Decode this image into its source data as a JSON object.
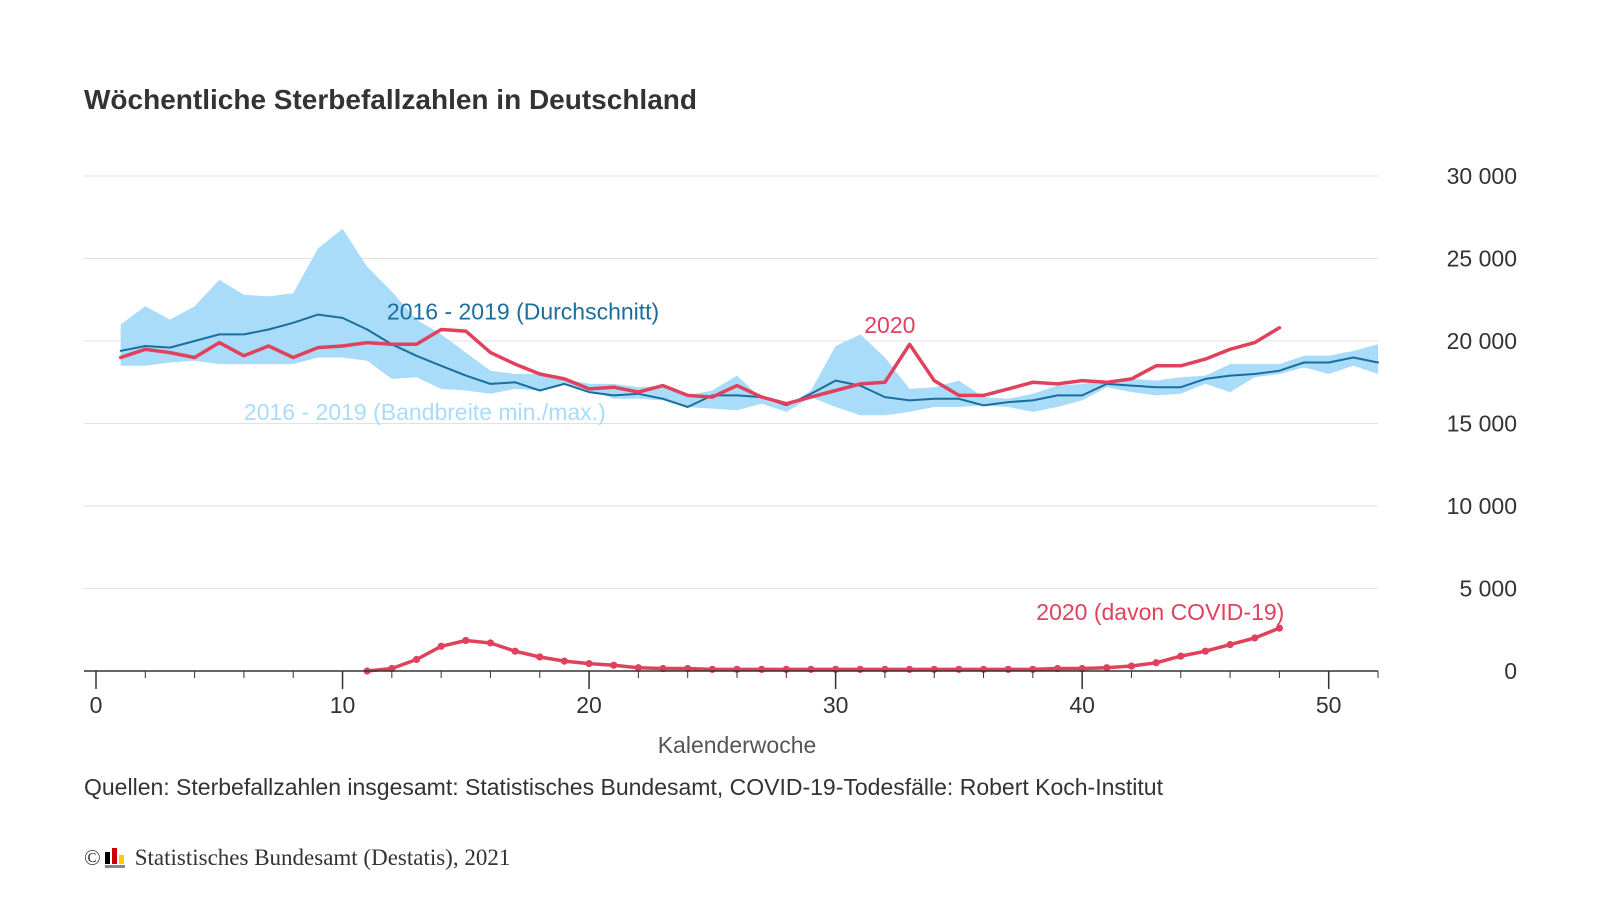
{
  "chart_data": {
    "type": "line",
    "title": "Wöchentliche Sterbefallzahlen in Deutschland",
    "xlabel": "Kalenderwoche",
    "ylabel": "",
    "xlim": [
      0,
      52
    ],
    "ylim": [
      0,
      30000
    ],
    "x_ticks": [
      0,
      10,
      20,
      30,
      40,
      50
    ],
    "x_tick_labels": [
      "0",
      "10",
      "20",
      "30",
      "40",
      "50"
    ],
    "y_ticks": [
      0,
      5000,
      10000,
      15000,
      20000,
      25000,
      30000
    ],
    "y_tick_labels": [
      "0",
      "5 000",
      "10 000",
      "15 000",
      "20 000",
      "25 000",
      "30 000"
    ],
    "y_axis_position": "right",
    "grid": true,
    "band": {
      "name": "2016 - 2019 (Bandbreite min./max.)",
      "color": "#a8dcf8",
      "x": [
        1,
        2,
        3,
        4,
        5,
        6,
        7,
        8,
        9,
        10,
        11,
        12,
        13,
        14,
        15,
        16,
        17,
        18,
        19,
        20,
        21,
        22,
        23,
        24,
        25,
        26,
        27,
        28,
        29,
        30,
        31,
        32,
        33,
        34,
        35,
        36,
        37,
        38,
        39,
        40,
        41,
        42,
        43,
        44,
        45,
        46,
        47,
        48,
        49,
        50,
        51,
        52
      ],
      "min": [
        18500,
        18500,
        18700,
        18800,
        18600,
        18600,
        18600,
        18600,
        19000,
        19000,
        18800,
        17700,
        17800,
        17100,
        17000,
        16800,
        17100,
        17000,
        17400,
        17000,
        16500,
        16500,
        16400,
        16000,
        15900,
        15800,
        16200,
        15700,
        16600,
        16000,
        15500,
        15500,
        15700,
        16000,
        16000,
        16100,
        16000,
        15700,
        16000,
        16400,
        17200,
        16900,
        16700,
        16800,
        17400,
        16900,
        17800,
        18000,
        18400,
        18000,
        18500,
        18000
      ],
      "max": [
        21000,
        22100,
        21300,
        22100,
        23700,
        22800,
        22700,
        22900,
        25600,
        26800,
        24500,
        23000,
        21300,
        20400,
        19300,
        18200,
        18000,
        18000,
        17700,
        17400,
        17400,
        17200,
        17300,
        16700,
        17000,
        17900,
        16500,
        16000,
        17000,
        19700,
        20400,
        19000,
        17100,
        17200,
        17600,
        16600,
        16500,
        16800,
        17300,
        17400,
        17600,
        17700,
        17600,
        17800,
        17900,
        18600,
        18600,
        18600,
        19100,
        19100,
        19400,
        19800
      ]
    },
    "series": [
      {
        "name": "2016 - 2019 (Durchschnitt)",
        "color": "#1a6e9e",
        "x": [
          1,
          2,
          3,
          4,
          5,
          6,
          7,
          8,
          9,
          10,
          11,
          12,
          13,
          14,
          15,
          16,
          17,
          18,
          19,
          20,
          21,
          22,
          23,
          24,
          25,
          26,
          27,
          28,
          29,
          30,
          31,
          32,
          33,
          34,
          35,
          36,
          37,
          38,
          39,
          40,
          41,
          42,
          43,
          44,
          45,
          46,
          47,
          48,
          49,
          50,
          51,
          52
        ],
        "values": [
          19400,
          19700,
          19600,
          20000,
          20400,
          20400,
          20700,
          21100,
          21600,
          21400,
          20700,
          19800,
          19100,
          18500,
          17900,
          17400,
          17500,
          17000,
          17400,
          16900,
          16700,
          16800,
          16500,
          16000,
          16700,
          16700,
          16600,
          16100,
          16800,
          17600,
          17300,
          16600,
          16400,
          16500,
          16500,
          16100,
          16300,
          16400,
          16700,
          16700,
          17400,
          17300,
          17200,
          17200,
          17700,
          17900,
          18000,
          18200,
          18700,
          18700,
          19000,
          18700
        ]
      },
      {
        "name": "2020",
        "color": "#e0415d",
        "x": [
          1,
          2,
          3,
          4,
          5,
          6,
          7,
          8,
          9,
          10,
          11,
          12,
          13,
          14,
          15,
          16,
          17,
          18,
          19,
          20,
          21,
          22,
          23,
          24,
          25,
          26,
          27,
          28,
          29,
          30,
          31,
          32,
          33,
          34,
          35,
          36,
          37,
          38,
          39,
          40,
          41,
          42,
          43,
          44,
          45,
          46,
          47,
          48
        ],
        "values": [
          19000,
          19500,
          19300,
          19000,
          19900,
          19100,
          19700,
          19000,
          19600,
          19700,
          19900,
          19800,
          19800,
          20700,
          20600,
          19300,
          18600,
          18000,
          17700,
          17100,
          17200,
          16900,
          17300,
          16700,
          16600,
          17300,
          16600,
          16200,
          16600,
          17000,
          17400,
          17500,
          19800,
          17600,
          16700,
          16700,
          17100,
          17500,
          17400,
          17600,
          17500,
          17700,
          18500,
          18500,
          18900,
          19500,
          19900,
          20800
        ]
      },
      {
        "name": "2020 (davon COVID-19)",
        "color": "#e0415d",
        "markers": true,
        "x": [
          11,
          12,
          13,
          14,
          15,
          16,
          17,
          18,
          19,
          20,
          21,
          22,
          23,
          24,
          25,
          26,
          27,
          28,
          29,
          30,
          31,
          32,
          33,
          34,
          35,
          36,
          37,
          38,
          39,
          40,
          41,
          42,
          43,
          44,
          45,
          46,
          47,
          48
        ],
        "values": [
          0,
          150,
          700,
          1500,
          1850,
          1700,
          1200,
          850,
          600,
          450,
          350,
          200,
          150,
          150,
          100,
          100,
          100,
          100,
          100,
          100,
          100,
          100,
          100,
          100,
          100,
          100,
          100,
          100,
          150,
          150,
          200,
          300,
          500,
          900,
          1200,
          1600,
          2000,
          2600
        ]
      }
    ],
    "annotations": [
      {
        "text": "2016 - 2019 (Durchschnitt)",
        "color": "#1a6e9e"
      },
      {
        "text": "2020",
        "color": "#e0415d"
      },
      {
        "text": "2016 - 2019 (Bandbreite min./max.)",
        "color": "#a8dcf8"
      },
      {
        "text": "2020 (davon COVID-19)",
        "color": "#e0415d"
      }
    ]
  },
  "footer": {
    "source": "Quellen: Sterbefallzahlen insgesamt: Statistisches Bundesamt, COVID-19-Todesfälle: Robert Koch-Institut",
    "copyright_symbol": "©",
    "copyright_text": "Statistisches Bundesamt (Destatis), 2021",
    "logo_icon": "destatis-logo-icon"
  }
}
